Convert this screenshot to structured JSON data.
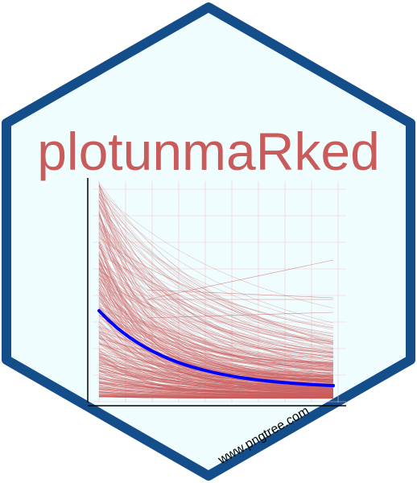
{
  "logo": {
    "title": "plotunmaRked",
    "title_color": "#c95b5b",
    "background_color": "#f0fdff",
    "border_color": "#144e8a"
  },
  "plot": {
    "grid_on": true,
    "sample_line_color": "#c95b5b",
    "mean_line_color": "#0000ff",
    "axis_color": "#000000"
  },
  "watermark": {
    "text": "www.pngtree.com"
  }
}
